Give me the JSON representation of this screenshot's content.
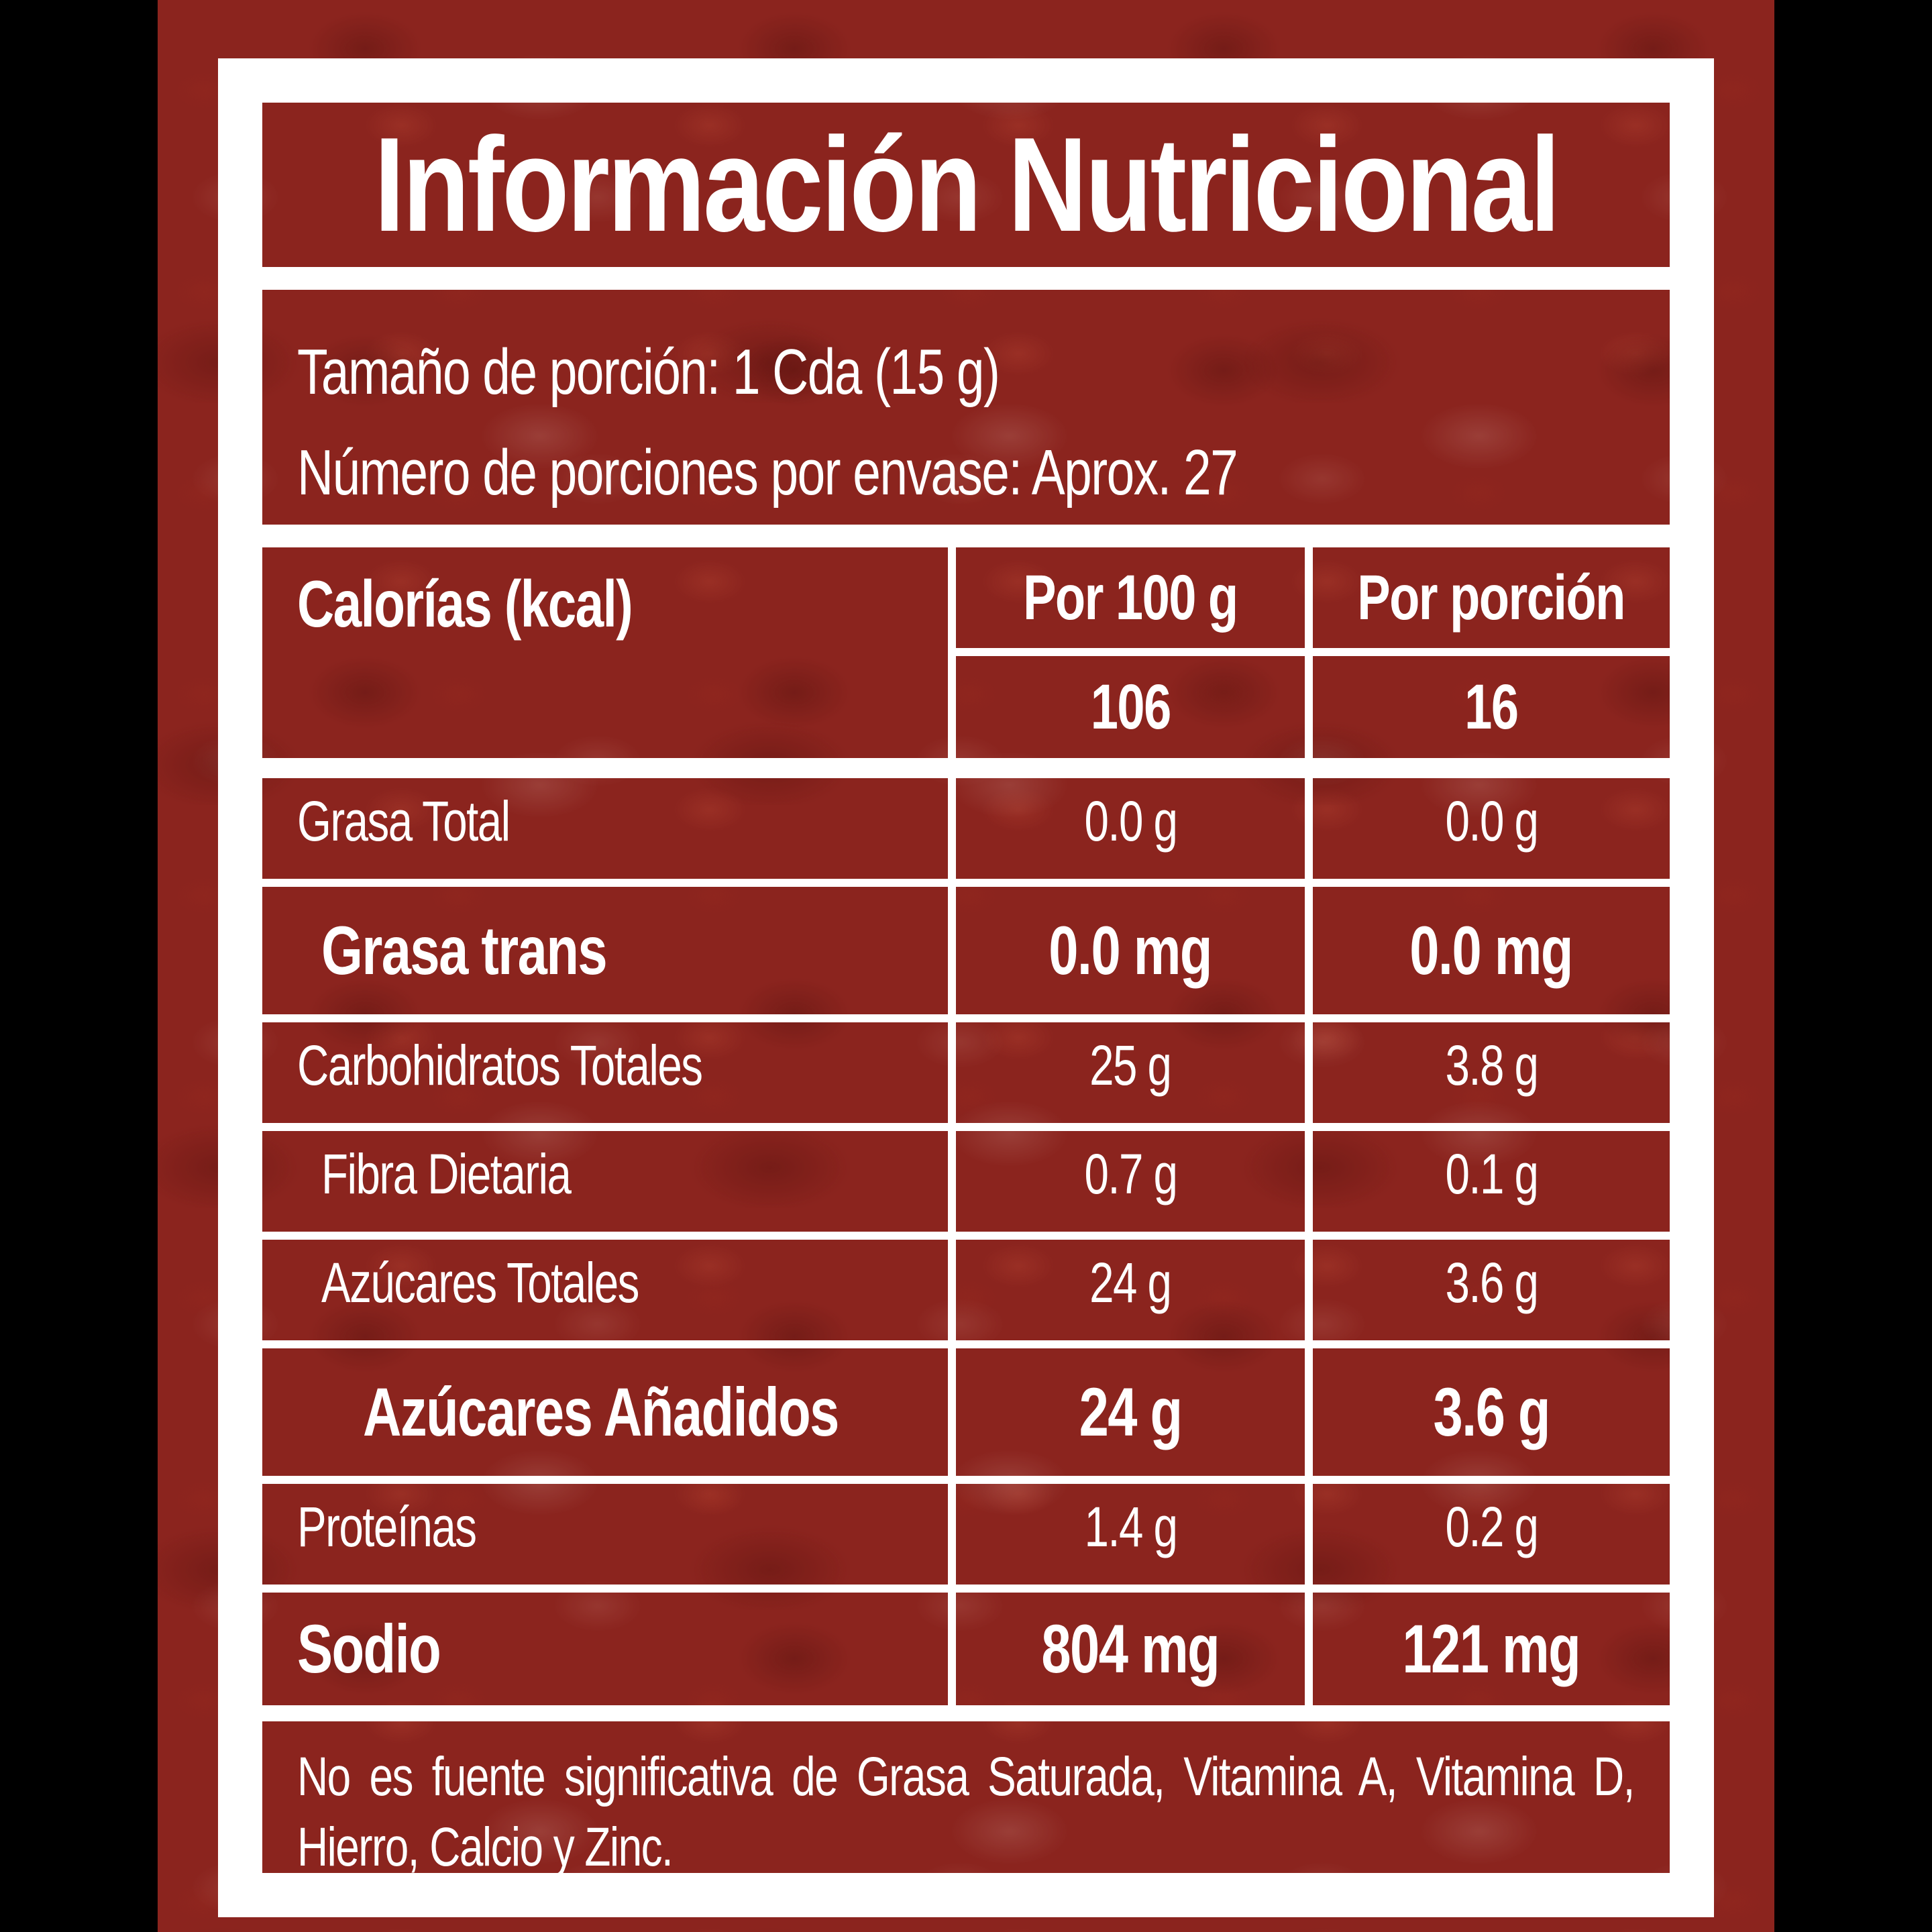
{
  "label": {
    "title": "Información Nutricional",
    "serving": {
      "size_line": "Tamaño de porción: 1 Cda (15 g)",
      "count_line": "Número de porciones por envase: Aprox. 27"
    },
    "calories": {
      "label": "Calorías (kcal)",
      "col_per100_header": "Por 100 g",
      "col_portion_header": "Por porción",
      "per100_value": "106",
      "portion_value": "16"
    },
    "nutrients": [
      {
        "label": "Grasa Total",
        "per100": "0.0 g",
        "portion": "0.0 g"
      },
      {
        "label": "Grasa trans",
        "per100": "0.0 mg",
        "portion": "0.0 mg"
      },
      {
        "label": "Carbohidratos Totales",
        "per100": "25 g",
        "portion": "3.8 g"
      },
      {
        "label": "Fibra Dietaria",
        "per100": "0.7 g",
        "portion": "0.1 g"
      },
      {
        "label": "Azúcares Totales",
        "per100": "24 g",
        "portion": "3.6 g"
      },
      {
        "label": "Azúcares Añadidos",
        "per100": "24 g",
        "portion": "3.6 g"
      },
      {
        "label": "Proteínas",
        "per100": "1.4 g",
        "portion": "0.2 g"
      },
      {
        "label": "Sodio",
        "per100": "804 mg",
        "portion": "121 mg"
      }
    ],
    "footnote": "No es fuente significativa de Grasa Saturada, Vitamina A, Vitamina D, Hierro, Calcio y Zinc.",
    "colors": {
      "canvas_black": "#000000",
      "sauce_red": "#8b241e",
      "frame_white": "#ffffff",
      "text_white": "#ffffff"
    }
  }
}
